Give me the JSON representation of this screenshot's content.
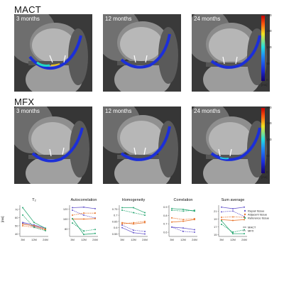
{
  "sections": [
    {
      "title": "MACT",
      "panels": [
        "3 months",
        "12 months",
        "24 months"
      ]
    },
    {
      "title": "MFX",
      "panels": [
        "3 months",
        "12 months",
        "24 months"
      ]
    }
  ],
  "colorbar": {
    "ticks": [
      "200",
      "150",
      "100",
      "50",
      "0"
    ],
    "unit": "[ms]"
  },
  "colors": {
    "repair": "#6a5acd",
    "adjacent": "#e8732a",
    "reference": "#2aa874",
    "mact_line": "solid",
    "mfx_line": "dashed"
  },
  "chart_data": [
    {
      "type": "line",
      "title": "T₂",
      "ylabel": "[ms]",
      "categories": [
        "3M",
        "12M",
        "24M"
      ],
      "yticks": [
        40,
        50,
        60,
        70
      ],
      "ylim": [
        37,
        75
      ],
      "series": [
        {
          "name": "Repair tissue",
          "style": "solid",
          "values": [
            54,
            51,
            47
          ]
        },
        {
          "name": "Repair tissue",
          "style": "dashed",
          "values": [
            53,
            49,
            46
          ]
        },
        {
          "name": "Adjacent tissue",
          "style": "solid",
          "values": [
            52,
            50,
            46
          ]
        },
        {
          "name": "Adjacent tissue",
          "style": "dashed",
          "values": [
            50,
            48,
            45
          ]
        },
        {
          "name": "Reference tissue",
          "style": "solid",
          "values": [
            72,
            54,
            47
          ]
        },
        {
          "name": "Reference tissue",
          "style": "dashed",
          "values": [
            63,
            48,
            44
          ]
        }
      ]
    },
    {
      "type": "line",
      "title": "Autocorrelation",
      "categories": [
        "3M",
        "12M",
        "24M"
      ],
      "yticks": [
        80,
        100,
        120
      ],
      "ylim": [
        65,
        128
      ],
      "series": [
        {
          "name": "Repair tissue",
          "style": "solid",
          "values": [
            123,
            124,
            121
          ]
        },
        {
          "name": "Repair tissue",
          "style": "dashed",
          "values": [
            118,
            108,
            102
          ]
        },
        {
          "name": "Adjacent tissue",
          "style": "solid",
          "values": [
            100,
            100,
            101
          ]
        },
        {
          "name": "Adjacent tissue",
          "style": "dashed",
          "values": [
            108,
            112,
            112
          ]
        },
        {
          "name": "Reference tissue",
          "style": "solid",
          "values": [
            101,
            69,
            71
          ]
        },
        {
          "name": "Reference tissue",
          "style": "dashed",
          "values": [
            92,
            76,
            79
          ]
        }
      ]
    },
    {
      "type": "line",
      "title": "Homogeneity",
      "categories": [
        "3M",
        "12M",
        "24M"
      ],
      "yticks": [
        0.55,
        0.6,
        0.65,
        0.7,
        0.75
      ],
      "ylim": [
        0.53,
        0.78
      ],
      "series": [
        {
          "name": "Repair tissue",
          "style": "solid",
          "values": [
            0.6,
            0.56,
            0.55
          ]
        },
        {
          "name": "Repair tissue",
          "style": "dashed",
          "values": [
            0.62,
            0.58,
            0.57
          ]
        },
        {
          "name": "Adjacent tissue",
          "style": "solid",
          "values": [
            0.64,
            0.63,
            0.64
          ]
        },
        {
          "name": "Adjacent tissue",
          "style": "dashed",
          "values": [
            0.63,
            0.64,
            0.65
          ]
        },
        {
          "name": "Reference tissue",
          "style": "solid",
          "values": [
            0.76,
            0.76,
            0.72
          ]
        },
        {
          "name": "Reference tissue",
          "style": "dashed",
          "values": [
            0.74,
            0.72,
            0.7
          ]
        }
      ]
    },
    {
      "type": "line",
      "title": "Correlation",
      "categories": [
        "3M",
        "12M",
        "24M"
      ],
      "yticks": [
        0.6,
        0.7,
        0.8,
        0.9
      ],
      "ylim": [
        0.55,
        0.92
      ],
      "series": [
        {
          "name": "Repair tissue",
          "style": "solid",
          "values": [
            0.66,
            0.65,
            0.63
          ]
        },
        {
          "name": "Repair tissue",
          "style": "dashed",
          "values": [
            0.66,
            0.61,
            0.6
          ]
        },
        {
          "name": "Adjacent tissue",
          "style": "solid",
          "values": [
            0.72,
            0.73,
            0.75
          ]
        },
        {
          "name": "Adjacent tissue",
          "style": "dashed",
          "values": [
            0.77,
            0.75,
            0.76
          ]
        },
        {
          "name": "Reference tissue",
          "style": "solid",
          "values": [
            0.88,
            0.87,
            0.85
          ]
        },
        {
          "name": "Reference tissue",
          "style": "dashed",
          "values": [
            0.86,
            0.85,
            0.86
          ]
        }
      ]
    },
    {
      "type": "line",
      "title": "Sum average",
      "categories": [
        "3M",
        "12M",
        "24M"
      ],
      "yticks": [
        15,
        17,
        19,
        21
      ],
      "ylim": [
        14.5,
        22.5
      ],
      "series": [
        {
          "name": "Repair tissue",
          "style": "solid",
          "values": [
            22,
            21.6,
            22.0
          ]
        },
        {
          "name": "Repair tissue",
          "style": "dashed",
          "values": [
            20.8,
            21.0,
            19.6
          ]
        },
        {
          "name": "Adjacent tissue",
          "style": "solid",
          "values": [
            18.8,
            18.6,
            18.8
          ]
        },
        {
          "name": "Adjacent tissue",
          "style": "dashed",
          "values": [
            19.4,
            19.5,
            19.4
          ]
        },
        {
          "name": "Reference tissue",
          "style": "solid",
          "values": [
            18.5,
            15.2,
            15.2
          ]
        },
        {
          "name": "Reference tissue",
          "style": "dashed",
          "values": [
            17.6,
            15.6,
            16.2
          ]
        }
      ]
    }
  ],
  "legend": {
    "tissues": [
      "Repair tissue",
      "Adjacent tissue",
      "Reference tissue"
    ],
    "methods": [
      "MACT",
      "MFX"
    ]
  }
}
